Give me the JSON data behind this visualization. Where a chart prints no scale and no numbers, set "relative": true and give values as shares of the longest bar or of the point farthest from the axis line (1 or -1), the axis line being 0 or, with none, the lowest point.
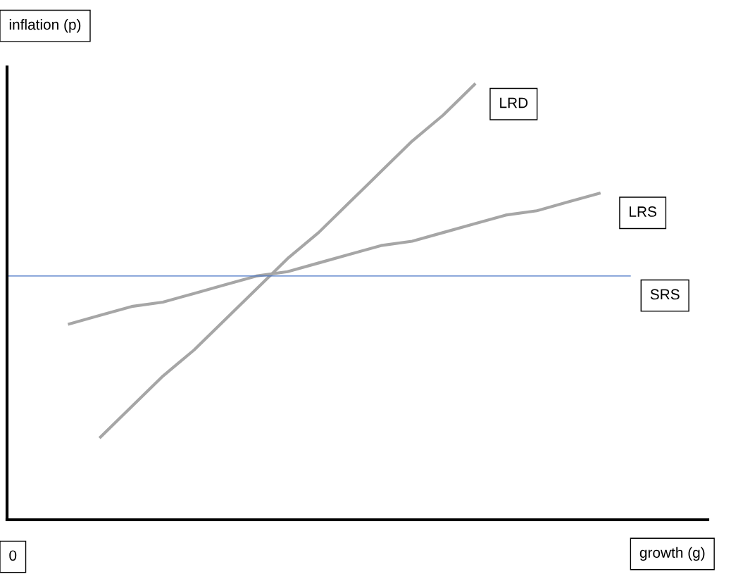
{
  "chart_data": {
    "type": "line",
    "relative": true,
    "xlabel": "growth (g)",
    "ylabel": "inflation (p)",
    "annotations": [
      "0"
    ],
    "marker": "none",
    "line_style": "solid",
    "categories": [
      null,
      null,
      null,
      null,
      null,
      null,
      null,
      null,
      null,
      null,
      null,
      null,
      null,
      null,
      null,
      null,
      null,
      null,
      null,
      null,
      null
    ],
    "series": [
      {
        "name": "LRD",
        "color": "#a6a6a6",
        "values": [
          null,
          null,
          null,
          0.19,
          0.26,
          0.33,
          0.39,
          0.46,
          0.53,
          0.6,
          0.66,
          0.73,
          0.8,
          0.87,
          0.93,
          1.0,
          null,
          null,
          null,
          null,
          null
        ]
      },
      {
        "name": "LRS",
        "color": "#a6a6a6",
        "values": [
          null,
          null,
          0.45,
          0.47,
          0.49,
          0.5,
          0.52,
          0.54,
          0.56,
          0.57,
          0.59,
          0.61,
          0.63,
          0.64,
          0.66,
          0.68,
          0.7,
          0.71,
          0.73,
          0.75,
          null
        ]
      },
      {
        "name": "SRS",
        "color": "#4472c4",
        "values": [
          0.56,
          0.56,
          0.56,
          0.56,
          0.56,
          0.56,
          0.56,
          0.56,
          0.56,
          0.56,
          0.56,
          0.56,
          0.56,
          0.56,
          0.56,
          0.56,
          0.56,
          0.56,
          0.56,
          0.56,
          0.56
        ]
      }
    ]
  }
}
